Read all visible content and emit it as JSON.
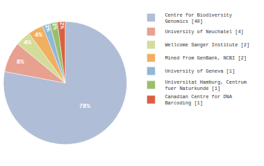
{
  "chart_data": {
    "type": "pie",
    "categories": [
      "Centre for Biodiversity\nGenomics [40]",
      "University of Neuchatel [4]",
      "Wellcome Sanger Institute [2]",
      "Mined from GenBank, NCBI [2]",
      "University of Geneva [1]",
      "Universitat Hamburg, Centrum\nfuer Naturkunde [1]",
      "Canadian Centre for DNA\nBarcoding [1]"
    ],
    "values": [
      78,
      8,
      4,
      4,
      2,
      2,
      2
    ],
    "value_labels": [
      "78%",
      "8%",
      "4%",
      "4%",
      "2%",
      "2%",
      "2%"
    ],
    "colors": [
      "#b0bdd6",
      "#e8a090",
      "#d4dc9a",
      "#f0b060",
      "#90b8d8",
      "#9abf6a",
      "#d96040"
    ],
    "data_labels": true,
    "legend": "upper right"
  }
}
